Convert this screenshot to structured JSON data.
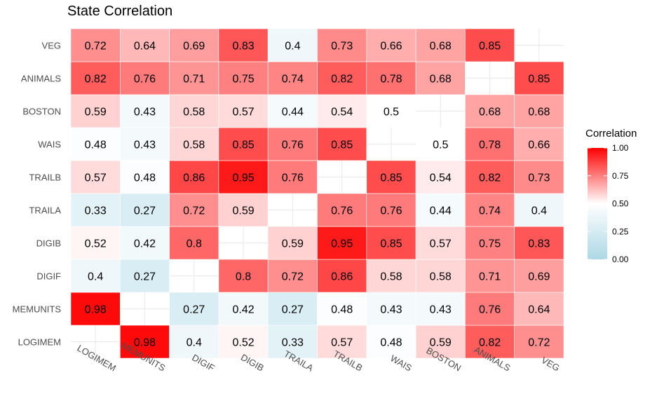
{
  "chart_data": {
    "type": "heatmap",
    "title": "State Correlation",
    "xlabel": "",
    "ylabel": "",
    "x_categories": [
      "LOGIMEM",
      "MEMUNITS",
      "DIGIF",
      "DIGIB",
      "TRAILA",
      "TRAILB",
      "WAIS",
      "BOSTON",
      "ANIMALS",
      "VEG"
    ],
    "y_categories": [
      "LOGIMEM",
      "MEMUNITS",
      "DIGIF",
      "DIGIB",
      "TRAILA",
      "TRAILB",
      "WAIS",
      "BOSTON",
      "ANIMALS",
      "VEG"
    ],
    "values": [
      [
        null,
        0.98,
        0.4,
        0.52,
        0.33,
        0.57,
        0.48,
        0.59,
        0.82,
        0.72
      ],
      [
        0.98,
        null,
        0.27,
        0.42,
        0.27,
        0.48,
        0.43,
        0.43,
        0.76,
        0.64
      ],
      [
        0.4,
        0.27,
        null,
        0.8,
        0.72,
        0.86,
        0.58,
        0.58,
        0.71,
        0.69
      ],
      [
        0.52,
        0.42,
        0.8,
        null,
        0.59,
        0.95,
        0.85,
        0.57,
        0.75,
        0.83
      ],
      [
        0.33,
        0.27,
        0.72,
        0.59,
        null,
        0.76,
        0.76,
        0.44,
        0.74,
        0.4
      ],
      [
        0.57,
        0.48,
        0.86,
        0.95,
        0.76,
        null,
        0.85,
        0.54,
        0.82,
        0.73
      ],
      [
        0.48,
        0.43,
        0.58,
        0.85,
        0.76,
        0.85,
        null,
        0.5,
        0.78,
        0.66
      ],
      [
        0.59,
        0.43,
        0.58,
        0.57,
        0.44,
        0.54,
        0.5,
        null,
        0.68,
        0.68
      ],
      [
        0.82,
        0.76,
        0.71,
        0.75,
        0.74,
        0.82,
        0.78,
        0.68,
        null,
        0.85
      ],
      [
        0.72,
        0.64,
        0.69,
        0.83,
        0.4,
        0.73,
        0.66,
        0.68,
        0.85,
        null
      ]
    ],
    "legend": {
      "title": "Correlation",
      "placement": "right",
      "ticks": [
        "1.00",
        "0.75",
        "0.50",
        "0.25",
        "0.00"
      ],
      "range": [
        0,
        1
      ],
      "midpoint": 0.5
    },
    "colors": {
      "low": "#add8e6",
      "mid": "#ffffff",
      "high": "#ff0000"
    },
    "grid": true
  }
}
